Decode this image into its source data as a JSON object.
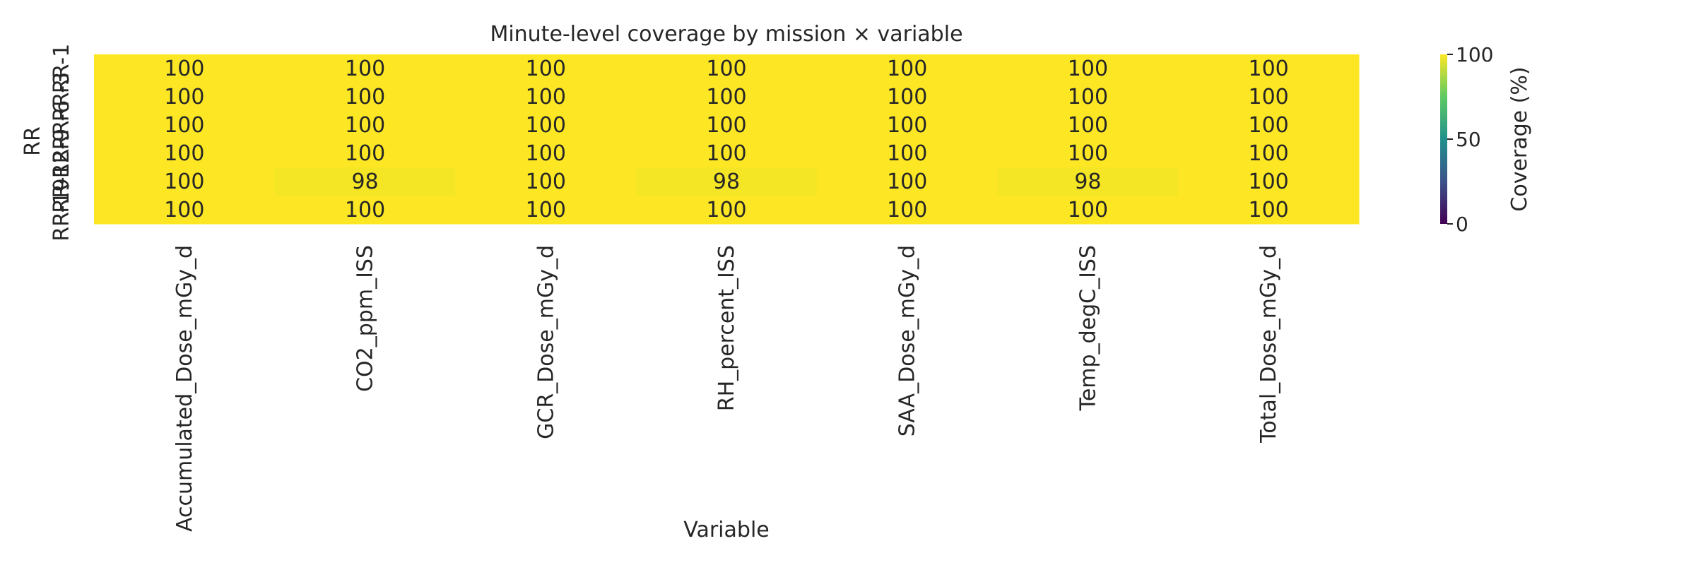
{
  "chart_data": {
    "type": "heatmap",
    "title": "Minute-level coverage by mission × variable",
    "xlabel": "Variable",
    "ylabel": "RR",
    "x": [
      "Accumulated_Dose_mGy_d",
      "CO2_ppm_ISS",
      "GCR_Dose_mGy_d",
      "RH_percent_ISS",
      "SAA_Dose_mGy_d",
      "Temp_degC_ISS",
      "Total_Dose_mGy_d"
    ],
    "y": [
      "RR-1",
      "RR-3",
      "RR-6",
      "RR-9",
      "RR-12",
      "RR-19"
    ],
    "values": [
      [
        100,
        100,
        100,
        100,
        100,
        100,
        100
      ],
      [
        100,
        100,
        100,
        100,
        100,
        100,
        100
      ],
      [
        100,
        100,
        100,
        100,
        100,
        100,
        100
      ],
      [
        100,
        100,
        100,
        100,
        100,
        100,
        100
      ],
      [
        100,
        98,
        100,
        98,
        100,
        98,
        100
      ],
      [
        100,
        100,
        100,
        100,
        100,
        100,
        100
      ]
    ],
    "colormap": "viridis",
    "vmin": 0,
    "vmax": 100,
    "colorbar": {
      "label": "Coverage (%)",
      "ticks": [
        0,
        50,
        100
      ]
    }
  }
}
